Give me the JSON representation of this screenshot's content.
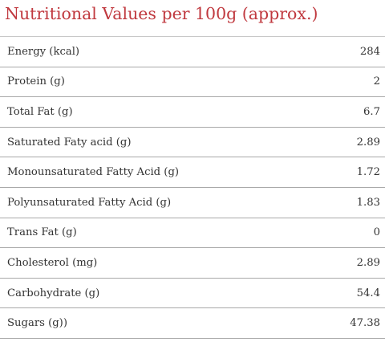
{
  "title": "Nutritional Values per 100g (approx.)",
  "colors": {
    "title": "#c0393f",
    "text": "#333333",
    "rule": "#a9a9a9"
  },
  "rows": [
    {
      "label": "Energy (kcal)",
      "value": "284"
    },
    {
      "label": "Protein (g)",
      "value": "2"
    },
    {
      "label": "Total Fat (g)",
      "value": "6.7"
    },
    {
      "label": "Saturated Faty acid (g)",
      "value": "2.89"
    },
    {
      "label": "Monounsaturated Fatty Acid (g)",
      "value": "1.72"
    },
    {
      "label": "Polyunsaturated Fatty Acid (g)",
      "value": "1.83"
    },
    {
      "label": "Trans Fat (g)",
      "value": "0"
    },
    {
      "label": "Cholesterol (mg)",
      "value": "2.89"
    },
    {
      "label": "Carbohydrate (g)",
      "value": "54.4"
    },
    {
      "label": "Sugars (g))",
      "value": "47.38"
    }
  ]
}
